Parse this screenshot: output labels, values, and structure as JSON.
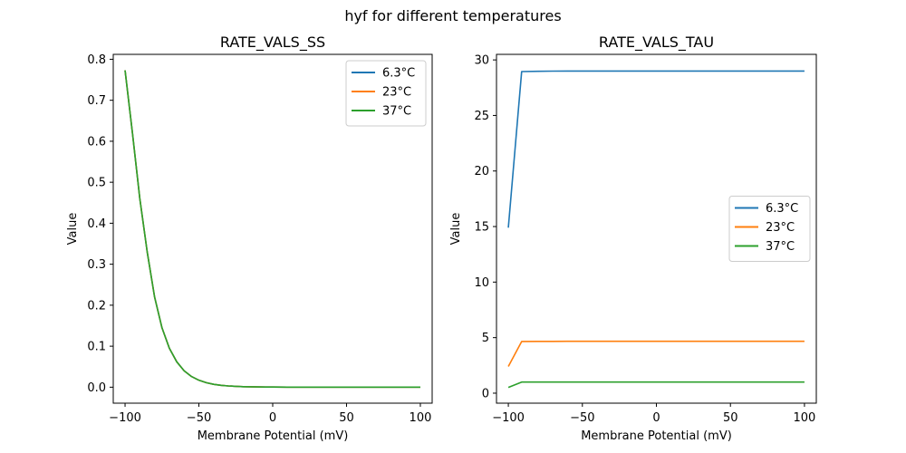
{
  "suptitle": "hyf for different temperatures",
  "chart_data": [
    {
      "type": "line",
      "title": "RATE_VALS_SS",
      "xlabel": "Membrane Potential (mV)",
      "ylabel": "Value",
      "xlim": [
        -108,
        108
      ],
      "ylim": [
        -0.039,
        0.812
      ],
      "xticks": [
        -100,
        -50,
        0,
        50,
        100
      ],
      "xtick_labels": [
        "−100",
        "−50",
        "0",
        "50",
        "100"
      ],
      "yticks": [
        0.0,
        0.1,
        0.2,
        0.3,
        0.4,
        0.5,
        0.6,
        0.7,
        0.8
      ],
      "ytick_labels": [
        "0.0",
        "0.1",
        "0.2",
        "0.3",
        "0.4",
        "0.5",
        "0.6",
        "0.7",
        "0.8"
      ],
      "legend": "top-right",
      "grid": false,
      "x": [
        -100,
        -95,
        -90,
        -85,
        -80,
        -75,
        -70,
        -65,
        -60,
        -55,
        -50,
        -45,
        -40,
        -35,
        -30,
        -25,
        -20,
        -15,
        -10,
        -5,
        0,
        10,
        20,
        30,
        40,
        50,
        60,
        70,
        80,
        90,
        100
      ],
      "series": [
        {
          "name": "6.3°C",
          "color": "#1f77b4",
          "values": [
            0.773,
            0.62,
            0.46,
            0.33,
            0.22,
            0.145,
            0.095,
            0.062,
            0.04,
            0.026,
            0.017,
            0.011,
            0.007,
            0.0045,
            0.003,
            0.002,
            0.0013,
            0.0009,
            0.0006,
            0.0004,
            0.0003,
            0.0001,
            5e-05,
            2e-05,
            1e-05,
            0,
            0,
            0,
            0,
            0,
            0
          ]
        },
        {
          "name": "23°C",
          "color": "#ff7f0e",
          "values": [
            0.773,
            0.62,
            0.46,
            0.33,
            0.22,
            0.145,
            0.095,
            0.062,
            0.04,
            0.026,
            0.017,
            0.011,
            0.007,
            0.0045,
            0.003,
            0.002,
            0.0013,
            0.0009,
            0.0006,
            0.0004,
            0.0003,
            0.0001,
            5e-05,
            2e-05,
            1e-05,
            0,
            0,
            0,
            0,
            0,
            0
          ]
        },
        {
          "name": "37°C",
          "color": "#2ca02c",
          "values": [
            0.773,
            0.62,
            0.46,
            0.33,
            0.22,
            0.145,
            0.095,
            0.062,
            0.04,
            0.026,
            0.017,
            0.011,
            0.007,
            0.0045,
            0.003,
            0.002,
            0.0013,
            0.0009,
            0.0006,
            0.0004,
            0.0003,
            0.0001,
            5e-05,
            2e-05,
            1e-05,
            0,
            0,
            0,
            0,
            0,
            0
          ]
        }
      ]
    },
    {
      "type": "line",
      "title": "RATE_VALS_TAU",
      "xlabel": "Membrane Potential (mV)",
      "ylabel": "Value",
      "xlim": [
        -108,
        108
      ],
      "ylim": [
        -0.9,
        30.5
      ],
      "xticks": [
        -100,
        -50,
        0,
        50,
        100
      ],
      "xtick_labels": [
        "−100",
        "−50",
        "0",
        "50",
        "100"
      ],
      "yticks": [
        0,
        5,
        10,
        15,
        20,
        25,
        30
      ],
      "ytick_labels": [
        "0",
        "5",
        "10",
        "15",
        "20",
        "25",
        "30"
      ],
      "legend": "center-right",
      "grid": false,
      "x": [
        -100,
        -91,
        -80,
        -70,
        -60,
        -50,
        -40,
        -30,
        -20,
        -10,
        0,
        10,
        20,
        30,
        40,
        50,
        60,
        70,
        80,
        90,
        100
      ],
      "series": [
        {
          "name": "6.3°C",
          "color": "#1f77b4",
          "values": [
            14.9,
            28.95,
            28.98,
            28.99,
            29.0,
            29.0,
            29.0,
            29.0,
            29.0,
            29.0,
            29.0,
            29.0,
            29.0,
            29.0,
            29.0,
            29.0,
            29.0,
            29.0,
            29.0,
            29.0,
            29.0
          ]
        },
        {
          "name": "23°C",
          "color": "#ff7f0e",
          "values": [
            2.4,
            4.65,
            4.66,
            4.66,
            4.67,
            4.67,
            4.67,
            4.67,
            4.67,
            4.67,
            4.67,
            4.67,
            4.67,
            4.67,
            4.67,
            4.67,
            4.67,
            4.67,
            4.67,
            4.67,
            4.67
          ]
        },
        {
          "name": "37°C",
          "color": "#2ca02c",
          "values": [
            0.52,
            1.0,
            1.0,
            1.0,
            1.0,
            1.0,
            1.0,
            1.0,
            1.0,
            1.0,
            1.0,
            1.0,
            1.0,
            1.0,
            1.0,
            1.0,
            1.0,
            1.0,
            1.0,
            1.0,
            1.0
          ]
        }
      ]
    }
  ]
}
